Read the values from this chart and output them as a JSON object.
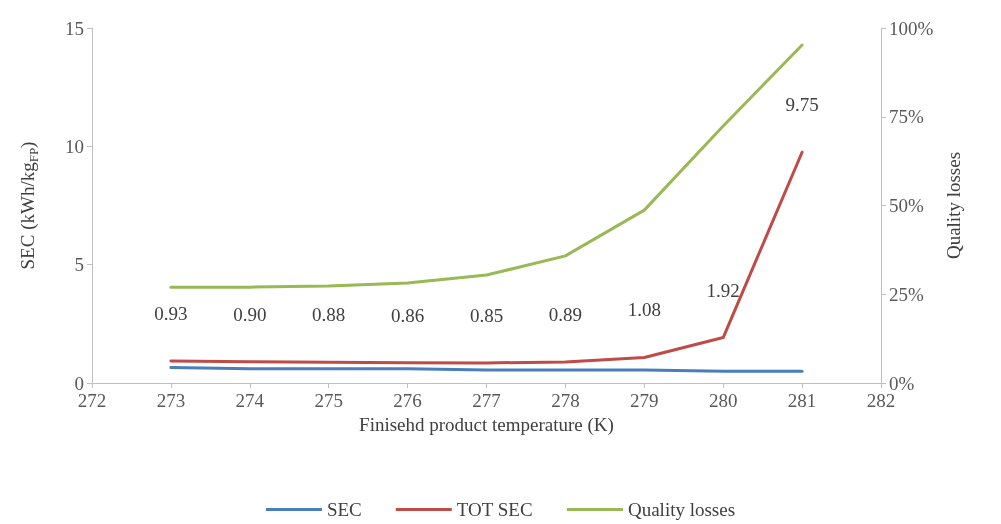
{
  "chart_data": {
    "type": "line",
    "xlabel": "Finisehd product temperature (K)",
    "ylabel": "SEC (kWh/kg$_{FP}$)",
    "y2label": "Quality losses",
    "x": [
      273,
      274,
      275,
      276,
      277,
      278,
      279,
      280,
      281
    ],
    "xlim": [
      272,
      282
    ],
    "xticks": [
      272,
      273,
      274,
      275,
      276,
      277,
      278,
      279,
      280,
      281,
      282
    ],
    "ylim": [
      0,
      15
    ],
    "yticks": [
      0,
      5,
      10,
      15
    ],
    "y2lim": [
      0,
      100
    ],
    "y2ticks": [
      {
        "value": 0,
        "label": "0%"
      },
      {
        "value": 25,
        "label": "25%"
      },
      {
        "value": 50,
        "label": "50%"
      },
      {
        "value": 75,
        "label": "75%"
      },
      {
        "value": 100,
        "label": "100%"
      }
    ],
    "series": [
      {
        "name": "SEC",
        "color": "#4a7ebb",
        "values": [
          0.65,
          0.6,
          0.6,
          0.6,
          0.55,
          0.55,
          0.55,
          0.5,
          0.5
        ]
      },
      {
        "name": "TOT SEC",
        "color": "#be4b48",
        "values": [
          0.93,
          0.9,
          0.88,
          0.86,
          0.85,
          0.89,
          1.08,
          1.92,
          9.75
        ],
        "value_labels": [
          "0.93",
          "0.90",
          "0.88",
          "0.86",
          "0.85",
          "0.89",
          "1.08",
          "1.92",
          "9.75"
        ]
      },
      {
        "name": "Quality losses",
        "color": "#98b954",
        "axis": "y2",
        "values": [
          27,
          27,
          27.3,
          28.2,
          30.4,
          35.8,
          48.7,
          72.4,
          95.2
        ]
      }
    ],
    "legend": "bottom",
    "marker": "none",
    "line_style": "solid"
  }
}
